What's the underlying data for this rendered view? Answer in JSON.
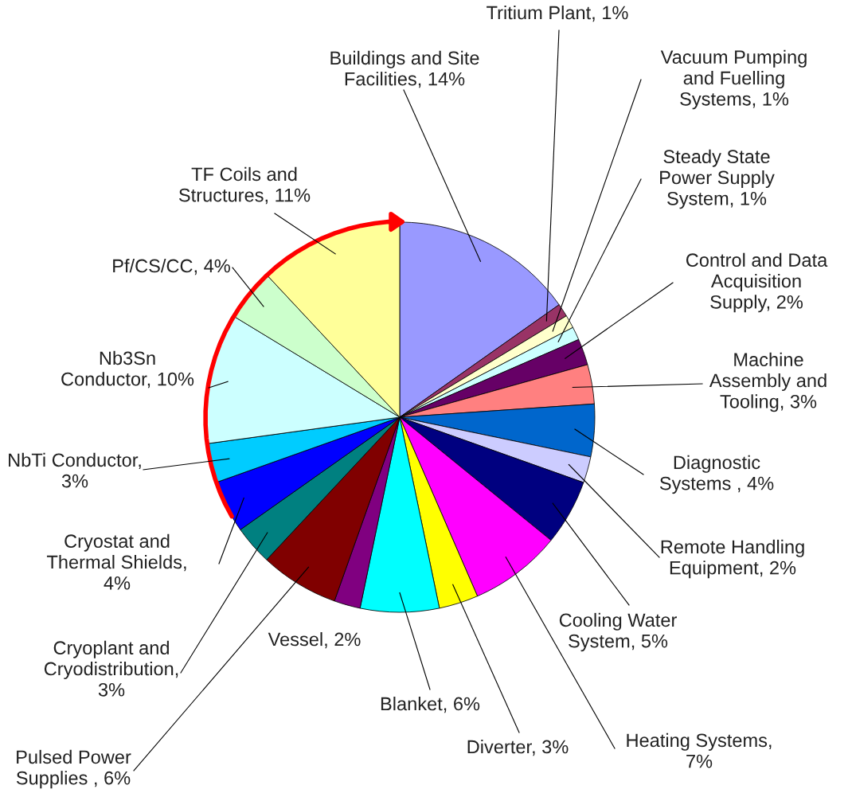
{
  "chart_data": {
    "type": "pie",
    "categories": [
      "Buildings and Site Facilities, 14%",
      "Tritium Plant, 1%",
      "Vacuum Pumping and Fuelling Systems, 1%",
      "Steady State Power Supply System, 1%",
      "Control and Data Acquisition Supply, 2%",
      "Machine Assembly and Tooling, 3%",
      "Diagnostic Systems , 4%",
      "Remote Handling Equipment, 2%",
      "Cooling Water System, 5%",
      "Heating Systems, 7%",
      "Diverter, 3%",
      "Blanket, 6%",
      "Vessel, 2%",
      "Pulsed Power Supplies , 6%",
      "Cryoplant and Cryodistribution, 3%",
      "Cryostat and Thermal Shields, 4%",
      "NbTi Conductor, 3%",
      "Nb3Sn Conductor, 10%",
      "Pf/CS/CC, 4%",
      "TF Coils and Structures, 11%"
    ],
    "values": [
      14,
      1,
      1,
      1,
      2,
      3,
      4,
      2,
      5,
      7,
      3,
      6,
      2,
      6,
      3,
      4,
      3,
      10,
      4,
      11
    ],
    "colors": [
      "#9999ff",
      "#993366",
      "#ffffcc",
      "#ccffff",
      "#660066",
      "#ff8080",
      "#0066cc",
      "#ccccff",
      "#000080",
      "#ff00ff",
      "#ffff00",
      "#00ffff",
      "#800080",
      "#800000",
      "#008080",
      "#0000ff",
      "#00ccff",
      "#ccffff",
      "#ccffcc",
      "#ffff99"
    ]
  }
}
